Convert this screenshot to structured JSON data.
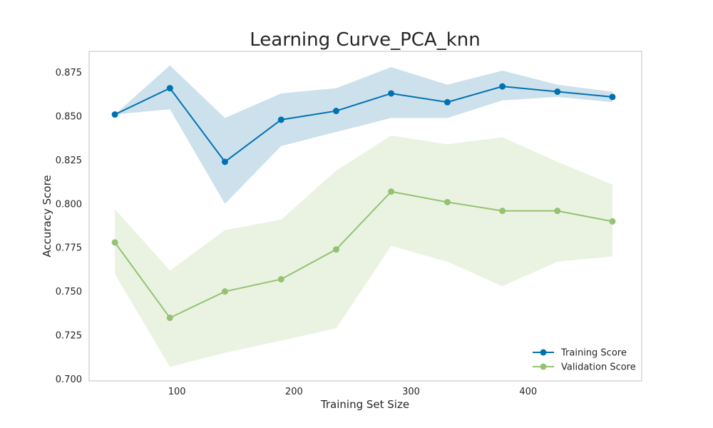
{
  "chart_data": {
    "type": "line",
    "title": "Learning Curve_PCA_knn",
    "xlabel": "Training Set Size",
    "ylabel": "Accuracy Score",
    "xlim": [
      25,
      497
    ],
    "ylim": [
      0.699,
      0.887
    ],
    "x_ticks": [
      100,
      200,
      300,
      400
    ],
    "y_ticks": [
      0.7,
      0.725,
      0.75,
      0.775,
      0.8,
      0.825,
      0.85,
      0.875
    ],
    "y_tick_labels": [
      "0.700",
      "0.725",
      "0.750",
      "0.775",
      "0.800",
      "0.825",
      "0.850",
      "0.875"
    ],
    "grid": false,
    "legend_position": "lower-right",
    "x": [
      47,
      94,
      141,
      189,
      236,
      283,
      331,
      378,
      425,
      472
    ],
    "series": [
      {
        "name": "Training Score",
        "color": "#0072b2",
        "band_color": "#cde1ec",
        "values": [
          0.851,
          0.866,
          0.824,
          0.848,
          0.853,
          0.863,
          0.858,
          0.867,
          0.864,
          0.861
        ],
        "upper": [
          0.851,
          0.879,
          0.849,
          0.863,
          0.866,
          0.878,
          0.868,
          0.876,
          0.868,
          0.864
        ],
        "lower": [
          0.851,
          0.854,
          0.8,
          0.833,
          0.841,
          0.849,
          0.849,
          0.859,
          0.861,
          0.858
        ]
      },
      {
        "name": "Validation Score",
        "color": "#94c273",
        "band_color": "#eaf3e2",
        "values": [
          0.778,
          0.735,
          0.75,
          0.757,
          0.774,
          0.807,
          0.801,
          0.796,
          0.796,
          0.79
        ],
        "upper": [
          0.797,
          0.762,
          0.785,
          0.791,
          0.819,
          0.839,
          0.834,
          0.838,
          0.824,
          0.811
        ],
        "lower": [
          0.76,
          0.707,
          0.715,
          0.722,
          0.729,
          0.776,
          0.767,
          0.753,
          0.767,
          0.77
        ]
      }
    ]
  }
}
